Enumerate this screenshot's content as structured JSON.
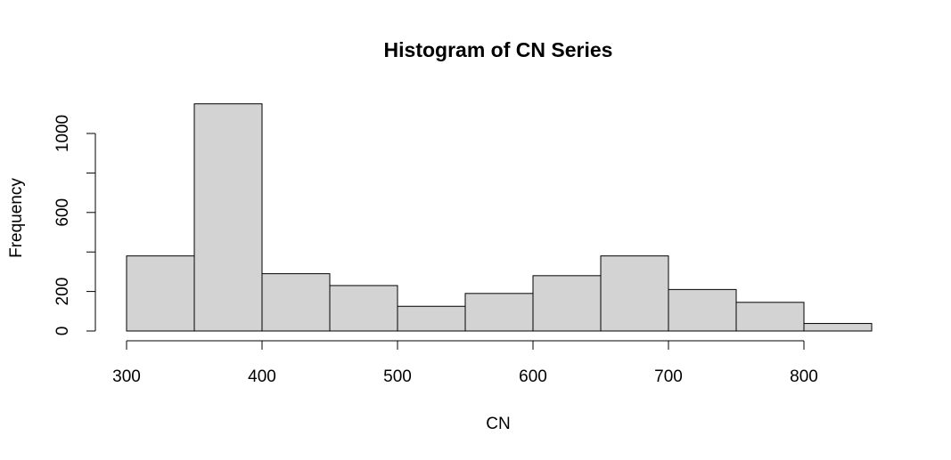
{
  "chart_data": {
    "type": "bar",
    "title": "Histogram of CN Series",
    "xlabel": "CN",
    "ylabel": "Frequency",
    "bin_edges": [
      300,
      350,
      400,
      450,
      500,
      550,
      600,
      650,
      700,
      750,
      800,
      850
    ],
    "values": [
      380,
      1150,
      290,
      230,
      125,
      190,
      280,
      380,
      210,
      145,
      38
    ],
    "xticks": [
      300,
      400,
      500,
      600,
      700,
      800
    ],
    "xtick_labels": [
      "300",
      "400",
      "500",
      "600",
      "700",
      "800"
    ],
    "yticks": [
      0,
      200,
      400,
      600,
      800,
      1000
    ],
    "ytick_labels": [
      "0",
      "200",
      "",
      "600",
      "",
      "1000"
    ],
    "xlim": [
      300,
      850
    ],
    "ylim": [
      0,
      1150
    ],
    "grid": false,
    "colors": {
      "bar_fill": "#d3d3d3",
      "bar_stroke": "#000000"
    }
  }
}
